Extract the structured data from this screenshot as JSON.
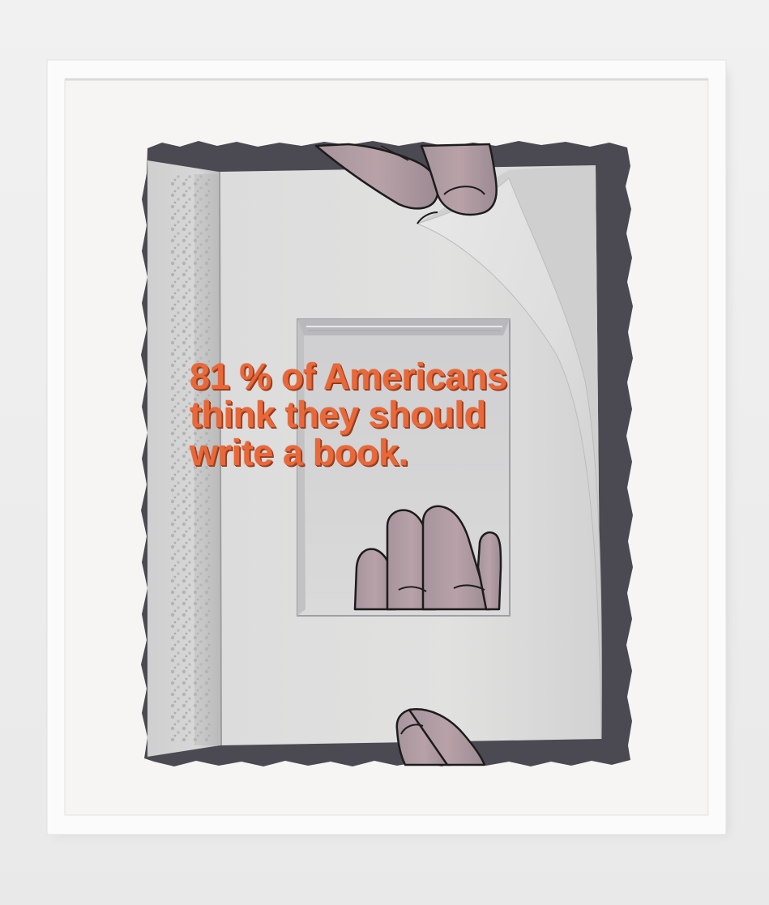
{
  "artwork": {
    "caption_lines": [
      "81 % of Americans",
      "think they should",
      "write a book."
    ]
  },
  "colors": {
    "wall": "#eeeeee",
    "frame": "#fafafa",
    "mat": "#f5f4f2",
    "shadow": "#4a4950",
    "page": "#dedede",
    "text": "#e8683a",
    "hand": "#b29aa0",
    "outline": "#1f1f1f"
  },
  "icons": [
    "framed-artwork",
    "book-illustration",
    "hand-top",
    "hand-middle",
    "hand-bottom"
  ]
}
